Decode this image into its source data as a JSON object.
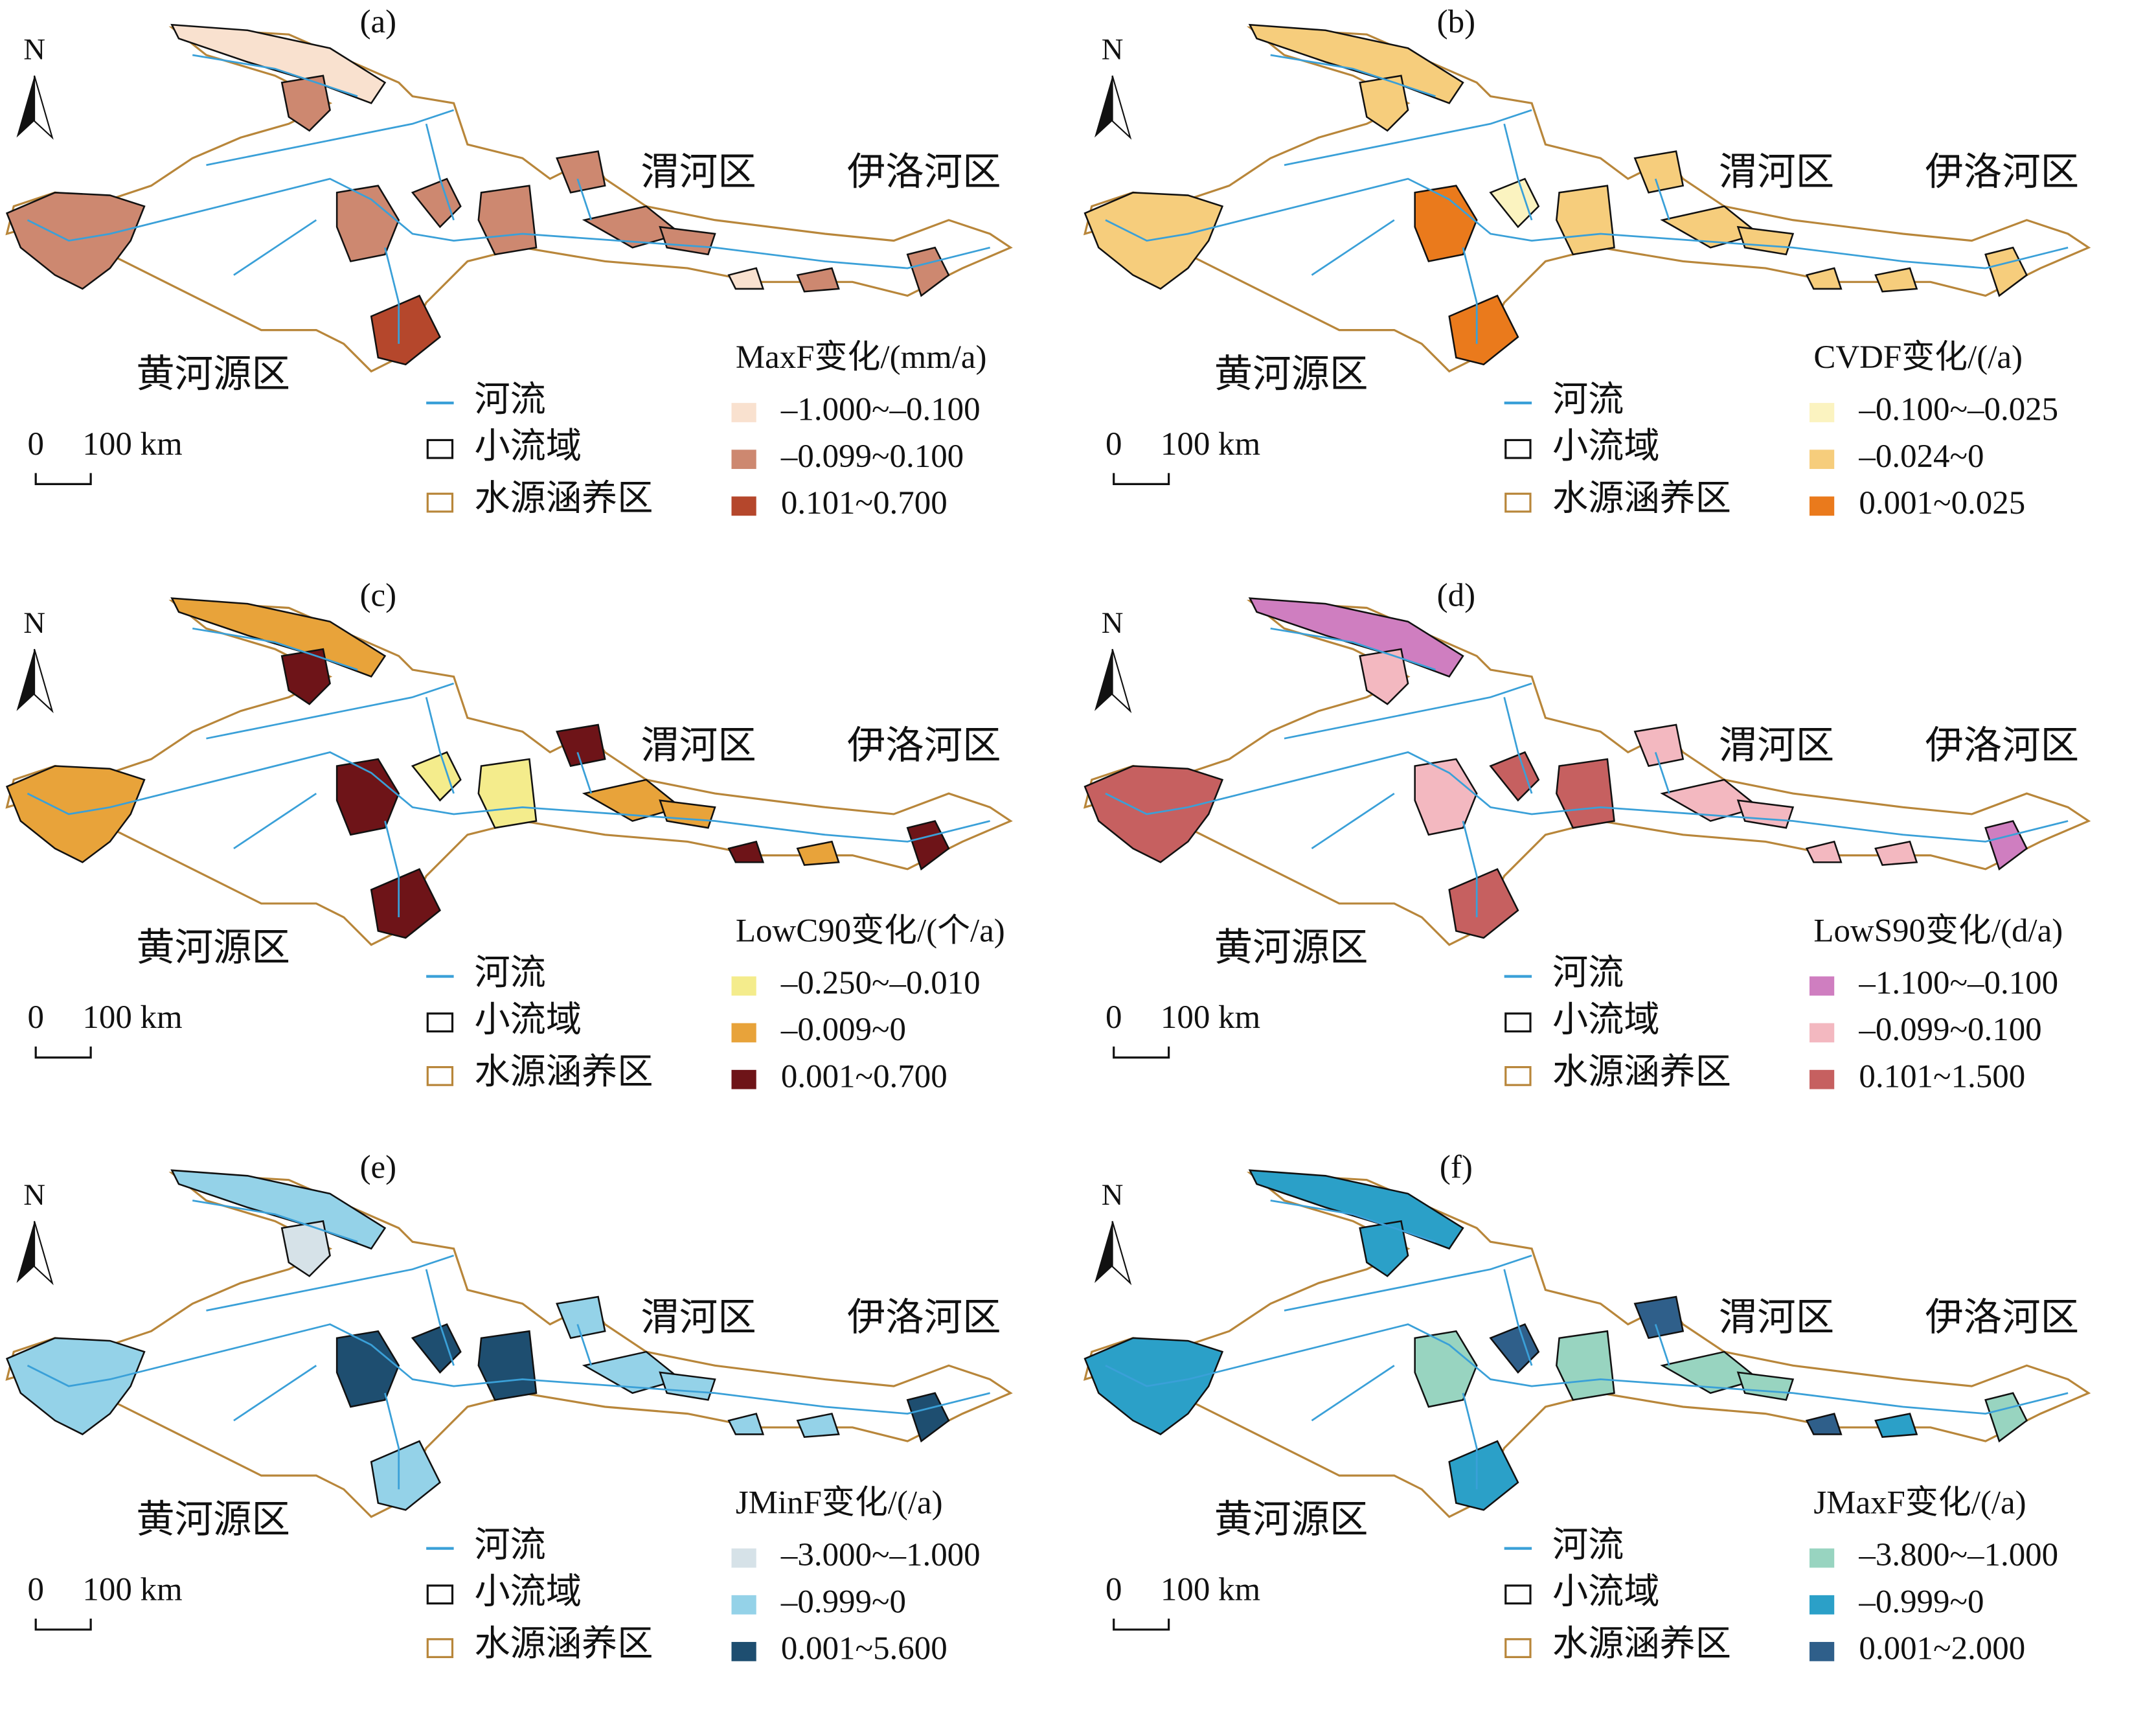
{
  "panels": [
    {
      "label": "(a)",
      "regions": [
        "渭河区",
        "伊洛河区",
        "黄河源区"
      ],
      "legend_title": "MaxF变化/(mm/a)",
      "classes": [
        {
          "label": "–1.000~–0.100",
          "color": "#f9e1cf"
        },
        {
          "label": "–0.099~0.100",
          "color": "#cd8870"
        },
        {
          "label": "0.101~0.700",
          "color": "#b5472c"
        }
      ]
    },
    {
      "label": "(b)",
      "regions": [
        "渭河区",
        "伊洛河区",
        "黄河源区"
      ],
      "legend_title": "CVDF变化/(/a)",
      "classes": [
        {
          "label": "–0.100~–0.025",
          "color": "#fbf3c0"
        },
        {
          "label": "–0.024~0",
          "color": "#f6cd7c"
        },
        {
          "label": "0.001~0.025",
          "color": "#ea7a1c"
        }
      ]
    },
    {
      "label": "(c)",
      "regions": [
        "渭河区",
        "伊洛河区",
        "黄河源区"
      ],
      "legend_title": "LowC90变化/(个/a)",
      "classes": [
        {
          "label": "–0.250~–0.010",
          "color": "#f4ec8c"
        },
        {
          "label": "–0.009~0",
          "color": "#e8a33a"
        },
        {
          "label": "0.001~0.700",
          "color": "#6e1418"
        }
      ]
    },
    {
      "label": "(d)",
      "regions": [
        "渭河区",
        "伊洛河区",
        "黄河源区"
      ],
      "legend_title": "LowS90变化/(d/a)",
      "classes": [
        {
          "label": "–1.100~–0.100",
          "color": "#cf7ec0"
        },
        {
          "label": "–0.099~0.100",
          "color": "#f3b8c0"
        },
        {
          "label": "0.101~1.500",
          "color": "#c66060"
        }
      ]
    },
    {
      "label": "(e)",
      "regions": [
        "渭河区",
        "伊洛河区",
        "黄河源区"
      ],
      "legend_title": "JMinF变化/(/a)",
      "classes": [
        {
          "label": "–3.000~–1.000",
          "color": "#d6e2e8"
        },
        {
          "label": "–0.999~0",
          "color": "#94d2e8"
        },
        {
          "label": "0.001~5.600",
          "color": "#1e4e70"
        }
      ]
    },
    {
      "label": "(f)",
      "regions": [
        "渭河区",
        "伊洛河区",
        "黄河源区"
      ],
      "legend_title": "JMaxF变化/(/a)",
      "classes": [
        {
          "label": "–3.800~–1.000",
          "color": "#98d4c0"
        },
        {
          "label": "–0.999~0",
          "color": "#2ba0c8"
        },
        {
          "label": "0.001~2.000",
          "color": "#2f5f8a"
        }
      ]
    }
  ],
  "common_legend": {
    "river": "河流",
    "subbasin": "小流域",
    "conservation_area": "水源涵养区"
  },
  "scale": {
    "zero": "0",
    "distance": "100 km"
  },
  "north": "N"
}
